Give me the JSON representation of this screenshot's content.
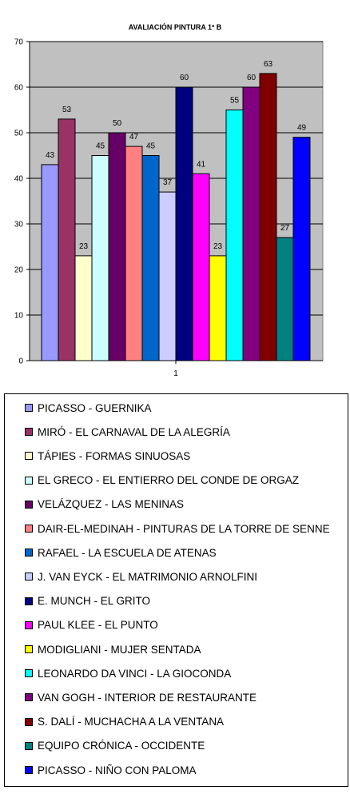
{
  "chart_data": {
    "type": "bar",
    "title": "AVALIACIÓN PINTURA 1º B",
    "categories": [
      "1"
    ],
    "ylim": [
      0,
      70
    ],
    "yticks": [
      0,
      10,
      20,
      30,
      40,
      50,
      60,
      70
    ],
    "grid": true,
    "plot_background": "#c0c0c0",
    "legend_position": "bottom",
    "series": [
      {
        "name": "PICASSO - GUERNIKA",
        "values": [
          43
        ],
        "color": "#9999ff"
      },
      {
        "name": "MIRÓ - EL CARNAVAL DE LA ALEGRÍA",
        "values": [
          53
        ],
        "color": "#993366"
      },
      {
        "name": "TÁPIES - FORMAS SINUOSAS",
        "values": [
          23
        ],
        "color": "#ffffcc"
      },
      {
        "name": "EL GRECO - EL ENTIERRO DEL CONDE DE ORGAZ",
        "values": [
          45
        ],
        "color": "#ccffff"
      },
      {
        "name": "VELÁZQUEZ - LAS MENINAS",
        "values": [
          50
        ],
        "color": "#660066"
      },
      {
        "name": "DAIR-EL-MEDINAH - PINTURAS DE LA TORRE DE SENNE",
        "values": [
          47
        ],
        "color": "#ff8080"
      },
      {
        "name": "RAFAEL - LA ESCUELA DE ATENAS",
        "values": [
          45
        ],
        "color": "#0066cc"
      },
      {
        "name": "J. VAN EYCK - EL MATRIMONIO ARNOLFINI",
        "values": [
          37
        ],
        "color": "#ccccff"
      },
      {
        "name": "E. MUNCH - EL GRITO",
        "values": [
          60
        ],
        "color": "#000080"
      },
      {
        "name": "PAUL KLEE - EL PUNTO",
        "values": [
          41
        ],
        "color": "#ff00ff"
      },
      {
        "name": "MODIGLIANI - MUJER SENTADA",
        "values": [
          23
        ],
        "color": "#ffff00"
      },
      {
        "name": "LEONARDO DA VINCI - LA GIOCONDA",
        "values": [
          55
        ],
        "color": "#00ffff"
      },
      {
        "name": "VAN GOGH - INTERIOR DE RESTAURANTE",
        "values": [
          60
        ],
        "color": "#800080"
      },
      {
        "name": "S. DALÍ - MUCHACHA A LA VENTANA",
        "values": [
          63
        ],
        "color": "#800000"
      },
      {
        "name": "EQUIPO CRÓNICA - OCCIDENTE",
        "values": [
          27
        ],
        "color": "#008080"
      },
      {
        "name": "PICASSO - NIÑO CON PALOMA",
        "values": [
          49
        ],
        "color": "#0000ff"
      }
    ]
  }
}
